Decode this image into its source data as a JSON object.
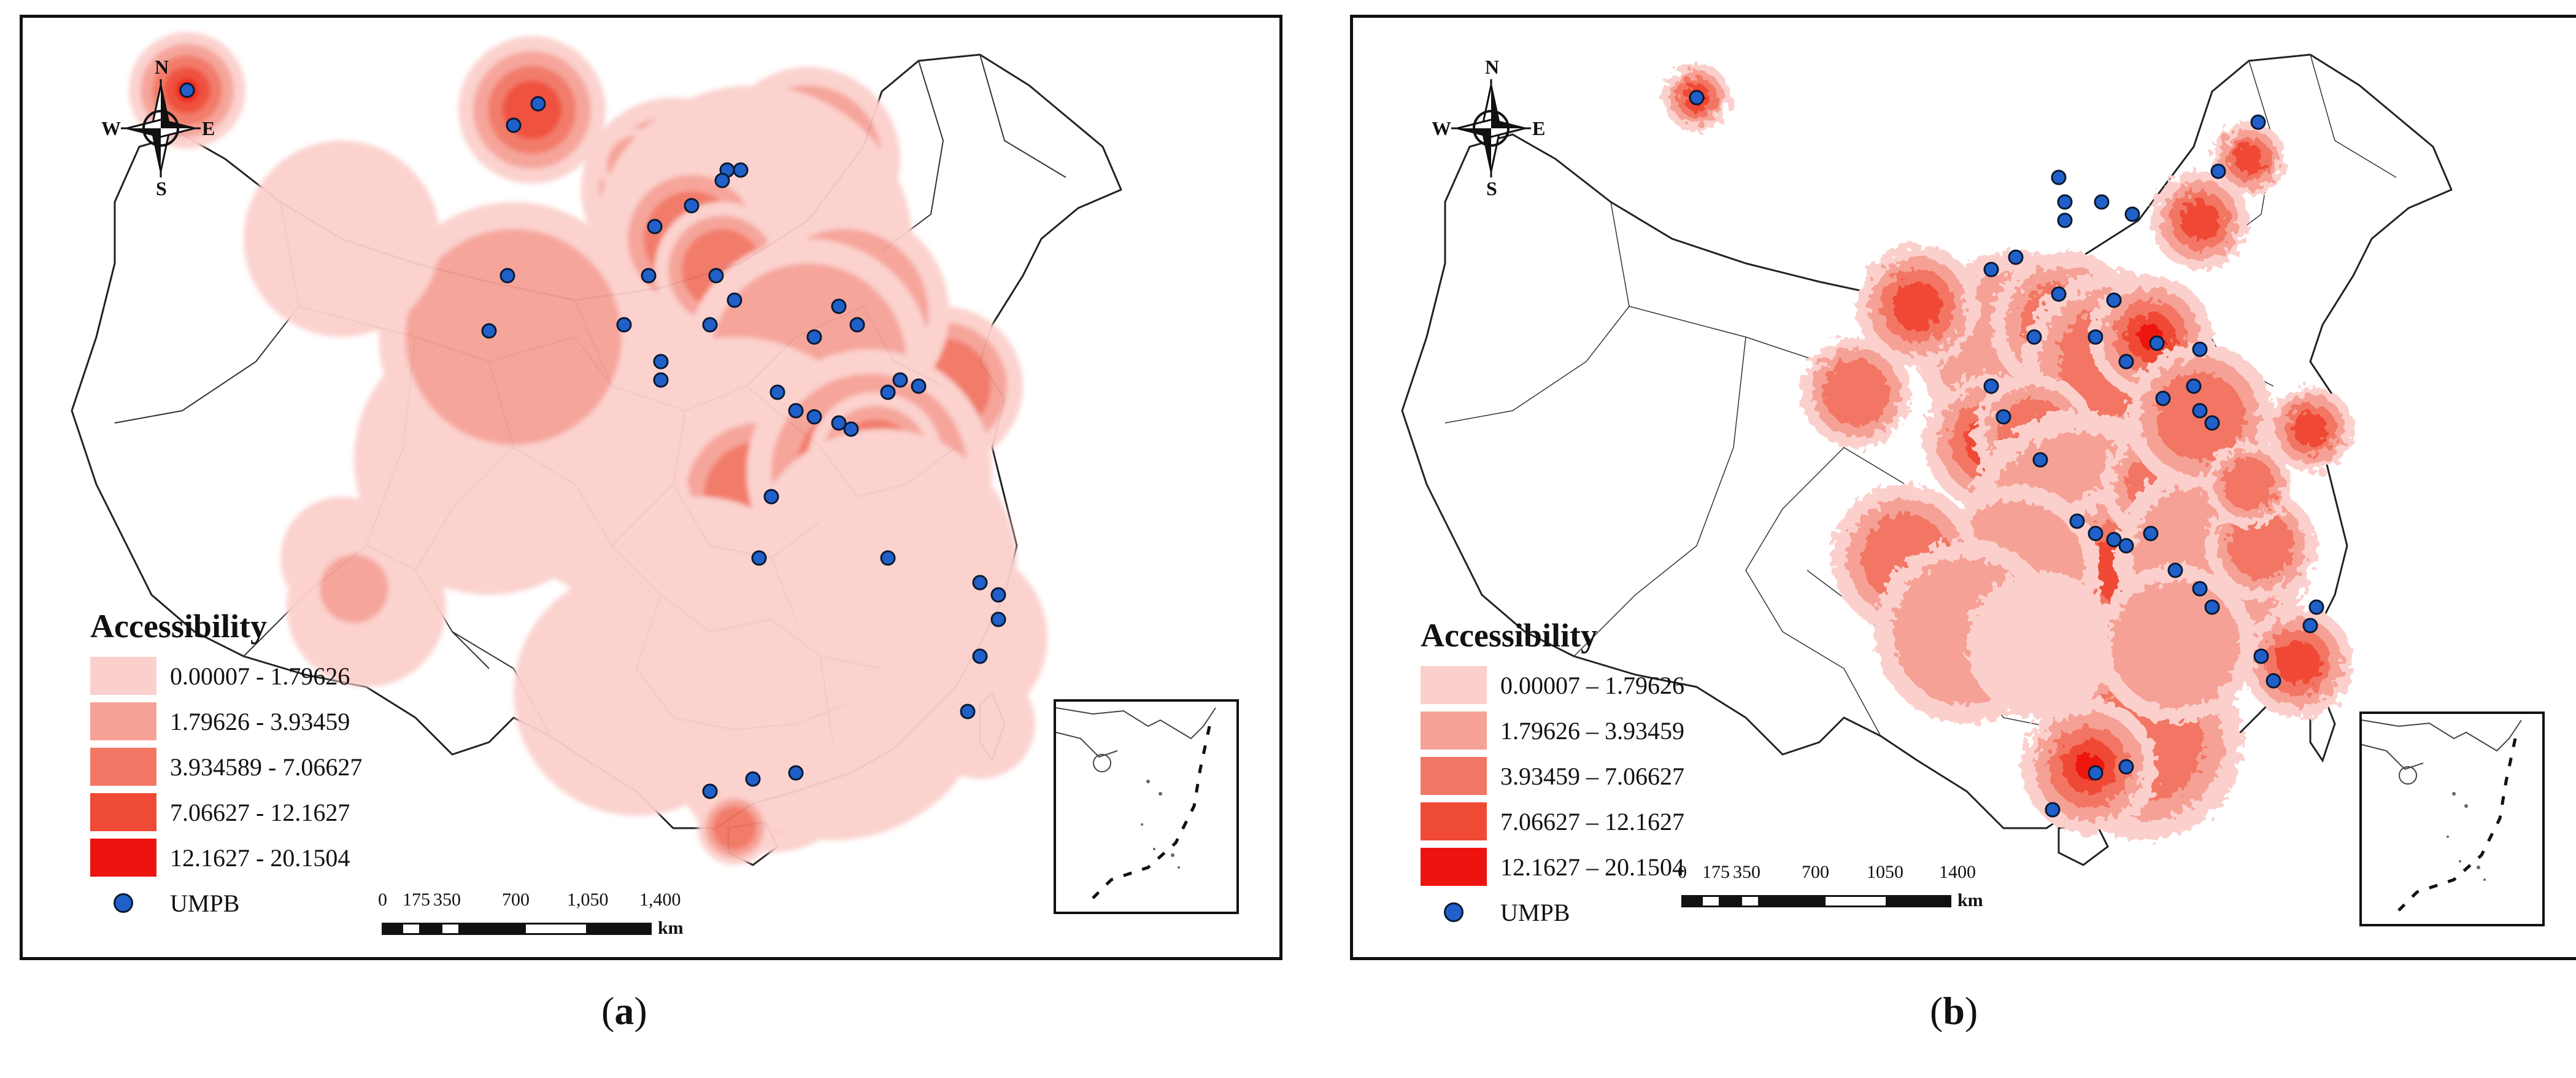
{
  "legend": {
    "title": "Accessibility",
    "colors": [
      "#fbd0cc",
      "#f6a196",
      "#f27664",
      "#ef4a35",
      "#ed1410"
    ],
    "point_color": "#2060c8"
  },
  "panels": [
    {
      "id": "a",
      "caption": "a",
      "compass": {
        "n": "N",
        "s": "S",
        "e": "E",
        "w": "W"
      },
      "classes": [
        "0.00007 - 1.79626",
        "1.79626 - 3.93459",
        "3.934589 - 7.06627",
        "7.06627 - 12.1627",
        "12.1627 - 20.1504"
      ],
      "point_label": "UMPB",
      "scale": {
        "ticks": [
          "0",
          "175",
          "350",
          "700",
          "1,050",
          "1,400"
        ],
        "unit": "km"
      }
    },
    {
      "id": "b",
      "caption": "b",
      "compass": {
        "n": "N",
        "s": "S",
        "e": "E",
        "w": "W"
      },
      "classes": [
        "0.00007 – 1.79626",
        "1.79626 – 3.93459",
        "3.93459 – 7.06627",
        "7.06627 – 12.1627",
        "12.1627 – 20.1504"
      ],
      "point_label": "UMPB",
      "scale": {
        "ticks": [
          "0",
          "175",
          "350",
          "700",
          "1050",
          "1400"
        ],
        "unit": "km"
      }
    }
  ]
}
